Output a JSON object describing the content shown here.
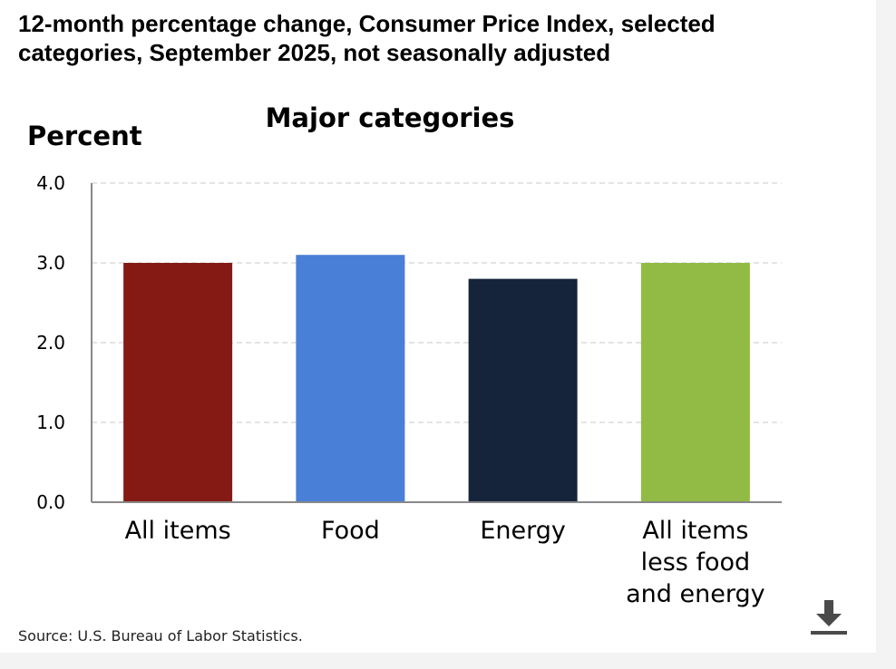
{
  "header": {
    "title": "12-month percentage change, Consumer Price Index, selected categories, September 2025, not seasonally adjusted"
  },
  "footer": {
    "source": "Source: U.S. Bureau of Labor Statistics."
  },
  "icons": {
    "download": "download-icon"
  },
  "chart_data": {
    "type": "bar",
    "title": "Major categories",
    "ylabel": "Percent",
    "xlabel": "",
    "categories": [
      "All items",
      "Food",
      "Energy",
      "All items less food and energy"
    ],
    "category_lines": [
      [
        "All items"
      ],
      [
        "Food"
      ],
      [
        "Energy"
      ],
      [
        "All items",
        "less food",
        "and energy"
      ]
    ],
    "values": [
      3.0,
      3.1,
      2.8,
      3.0
    ],
    "colors": [
      "#841a13",
      "#497fd6",
      "#15243a",
      "#92bb45"
    ],
    "ylim": [
      0,
      4.0
    ],
    "yticks": [
      0.0,
      1.0,
      2.0,
      3.0,
      4.0
    ],
    "ytick_labels": [
      "0.0",
      "1.0",
      "2.0",
      "3.0",
      "4.0"
    ],
    "grid": true,
    "legend": "none"
  }
}
